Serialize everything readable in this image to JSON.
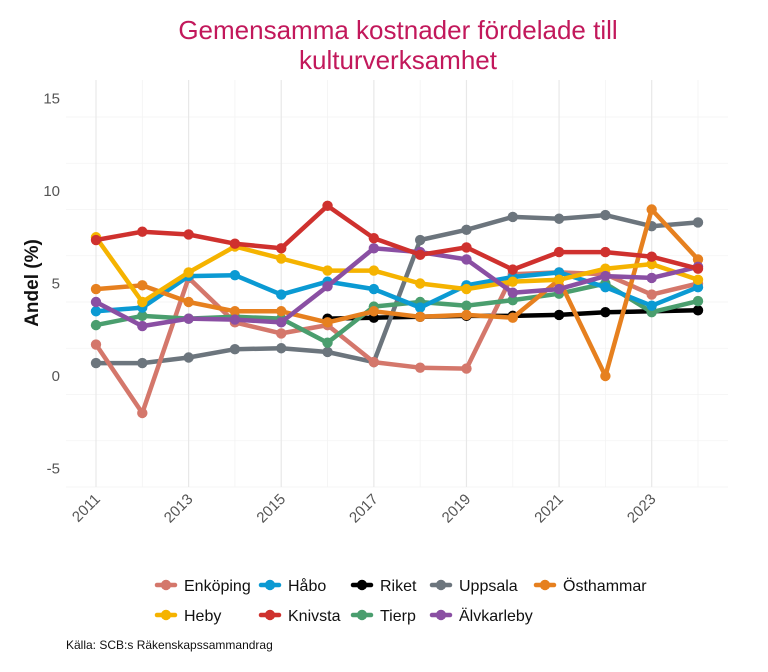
{
  "source": "Källa: SCB:s Räkenskapssammandrag",
  "chart_data": {
    "type": "line",
    "title": "Gemensamma kostnader fördelade till kulturverksamhet",
    "title_lines": [
      "Gemensamma kostnader fördelade till",
      "kulturverksamhet"
    ],
    "xlabel": "",
    "ylabel": "Andel (%)",
    "xlim": [
      2011,
      2024
    ],
    "ylim": [
      -6,
      16
    ],
    "x_ticks": [
      2011,
      2013,
      2015,
      2017,
      2019,
      2021,
      2023
    ],
    "y_ticks": [
      -5,
      0,
      5,
      10,
      15
    ],
    "grid": true,
    "legend_position": "bottom",
    "series": [
      {
        "name": "Riket",
        "color": "#000000",
        "points": [
          [
            2016,
            3.1
          ],
          [
            2017,
            3.15
          ],
          [
            2018,
            3.2
          ],
          [
            2019,
            3.25
          ],
          [
            2020,
            3.25
          ],
          [
            2021,
            3.3
          ],
          [
            2022,
            3.45
          ],
          [
            2023,
            3.5
          ],
          [
            2024,
            3.55
          ]
        ]
      },
      {
        "name": "Uppsala",
        "color": "#6c757d",
        "points": [
          [
            2011,
            0.7
          ],
          [
            2012,
            0.7
          ],
          [
            2013,
            1.0
          ],
          [
            2014,
            1.45
          ],
          [
            2015,
            1.5
          ],
          [
            2016,
            1.3
          ],
          [
            2017,
            0.75
          ],
          [
            2018,
            7.35
          ],
          [
            2019,
            7.9
          ],
          [
            2020,
            8.6
          ],
          [
            2021,
            8.5
          ],
          [
            2022,
            8.7
          ],
          [
            2023,
            8.1
          ],
          [
            2024,
            8.3
          ]
        ]
      },
      {
        "name": "Enköping",
        "color": "#d4776b",
        "points": [
          [
            2011,
            1.7
          ],
          [
            2012,
            -2.0
          ],
          [
            2013,
            5.3
          ],
          [
            2014,
            2.9
          ],
          [
            2015,
            2.3
          ],
          [
            2016,
            2.75
          ],
          [
            2017,
            0.75
          ],
          [
            2018,
            0.45
          ],
          [
            2019,
            0.4
          ],
          [
            2020,
            5.5
          ],
          [
            2021,
            5.6
          ],
          [
            2022,
            5.5
          ],
          [
            2023,
            4.4
          ],
          [
            2024,
            5.0
          ]
        ]
      },
      {
        "name": "Tierp",
        "color": "#4a9e6e",
        "points": [
          [
            2011,
            2.75
          ],
          [
            2012,
            3.25
          ],
          [
            2013,
            3.1
          ],
          [
            2014,
            3.2
          ],
          [
            2015,
            3.1
          ],
          [
            2016,
            1.8
          ],
          [
            2017,
            3.75
          ],
          [
            2018,
            4.0
          ],
          [
            2019,
            3.8
          ],
          [
            2020,
            4.1
          ],
          [
            2021,
            4.45
          ],
          [
            2022,
            5.0
          ],
          [
            2023,
            3.45
          ],
          [
            2024,
            4.05
          ]
        ]
      },
      {
        "name": "Håbo",
        "color": "#0b9ad3",
        "points": [
          [
            2011,
            3.5
          ],
          [
            2012,
            3.7
          ],
          [
            2013,
            5.4
          ],
          [
            2014,
            5.45
          ],
          [
            2015,
            4.4
          ],
          [
            2016,
            5.1
          ],
          [
            2017,
            4.7
          ],
          [
            2018,
            3.7
          ],
          [
            2019,
            4.9
          ],
          [
            2020,
            5.35
          ],
          [
            2021,
            5.6
          ],
          [
            2022,
            4.8
          ],
          [
            2023,
            3.8
          ],
          [
            2024,
            4.8
          ]
        ]
      },
      {
        "name": "Östhammar",
        "color": "#e6801f",
        "points": [
          [
            2011,
            4.7
          ],
          [
            2012,
            4.9
          ],
          [
            2013,
            4.0
          ],
          [
            2014,
            3.5
          ],
          [
            2015,
            3.5
          ],
          [
            2016,
            2.9
          ],
          [
            2017,
            3.5
          ],
          [
            2018,
            3.2
          ],
          [
            2019,
            3.3
          ],
          [
            2020,
            3.15
          ],
          [
            2021,
            5.2
          ],
          [
            2022,
            0.0
          ],
          [
            2023,
            9.0
          ],
          [
            2024,
            6.3
          ]
        ]
      },
      {
        "name": "Heby",
        "color": "#f5b300",
        "points": [
          [
            2011,
            7.5
          ],
          [
            2012,
            4.0
          ],
          [
            2013,
            5.6
          ],
          [
            2014,
            7.0
          ],
          [
            2015,
            6.35
          ],
          [
            2016,
            5.7
          ],
          [
            2017,
            5.7
          ],
          [
            2018,
            5.0
          ],
          [
            2019,
            4.7
          ],
          [
            2020,
            5.1
          ],
          [
            2021,
            5.2
          ],
          [
            2022,
            5.8
          ],
          [
            2023,
            6.05
          ],
          [
            2024,
            5.2
          ]
        ]
      },
      {
        "name": "Älvkarleby",
        "color": "#8a4fa3",
        "points": [
          [
            2011,
            4.0
          ],
          [
            2012,
            2.7
          ],
          [
            2013,
            3.1
          ],
          [
            2014,
            3.05
          ],
          [
            2015,
            2.9
          ],
          [
            2016,
            4.85
          ],
          [
            2017,
            6.9
          ],
          [
            2018,
            6.7
          ],
          [
            2019,
            6.3
          ],
          [
            2020,
            4.5
          ],
          [
            2021,
            4.7
          ],
          [
            2022,
            5.4
          ],
          [
            2023,
            5.3
          ],
          [
            2024,
            5.9
          ]
        ]
      },
      {
        "name": "Knivsta",
        "color": "#cf312e",
        "points": [
          [
            2011,
            7.35
          ],
          [
            2012,
            7.8
          ],
          [
            2013,
            7.65
          ],
          [
            2014,
            7.15
          ],
          [
            2015,
            6.9
          ],
          [
            2016,
            9.2
          ],
          [
            2017,
            7.45
          ],
          [
            2018,
            6.55
          ],
          [
            2019,
            6.95
          ],
          [
            2020,
            5.75
          ],
          [
            2021,
            6.7
          ],
          [
            2022,
            6.7
          ],
          [
            2023,
            6.45
          ],
          [
            2024,
            5.8
          ]
        ]
      }
    ],
    "legend_rows": [
      [
        "Enköping",
        "Håbo",
        "Riket",
        "Uppsala",
        "Östhammar"
      ],
      [
        "Heby",
        "Knivsta",
        "Tierp",
        "Älvkarleby"
      ]
    ]
  }
}
